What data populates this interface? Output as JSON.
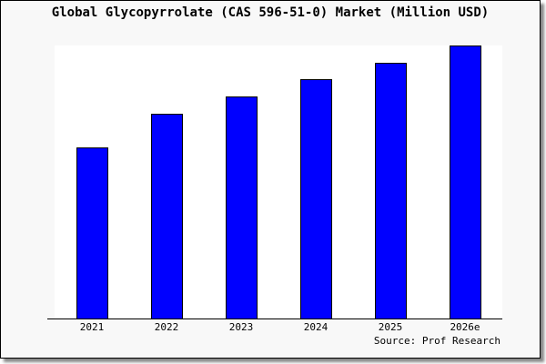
{
  "chart_data": {
    "type": "bar",
    "title": "Global Glycopyrrolate (CAS 596-51-0) Market (Million USD)",
    "categories": [
      "2021",
      "2022",
      "2023",
      "2024",
      "2025",
      "2026e"
    ],
    "values": [
      62.7,
      75.0,
      81.3,
      87.7,
      93.7,
      100
    ],
    "value_note_scale": "relative",
    "ylim": [
      0,
      100
    ],
    "xlabel": "",
    "ylabel": "",
    "grid": false,
    "bar_color": "#0000ff",
    "source": "Source: Prof Research"
  }
}
